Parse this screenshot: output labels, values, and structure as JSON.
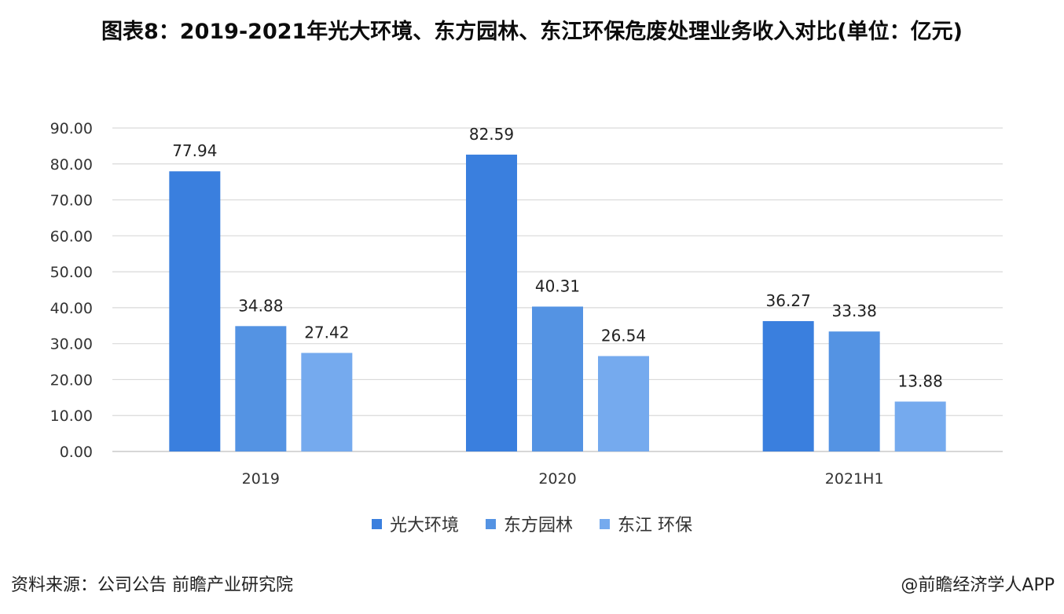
{
  "colors": {
    "series": [
      "#3a7fde",
      "#5493e3",
      "#75aaee"
    ],
    "grid": "#d9d9d9",
    "axis": "#bfbfbf"
  },
  "chart_data": {
    "type": "bar",
    "title": "图表8：2019-2021年光大环境、东方园林、东江环保危废处理业务收入对比(单位：亿元)",
    "categories": [
      "2019",
      "2020",
      "2021H1"
    ],
    "series": [
      {
        "name": "光大环境",
        "values": [
          77.94,
          82.59,
          36.27
        ],
        "labels": [
          "77.94",
          "82.59",
          "36.27"
        ]
      },
      {
        "name": "东方园林",
        "values": [
          34.88,
          40.31,
          33.38
        ],
        "labels": [
          "34.88",
          "40.31",
          "33.38"
        ]
      },
      {
        "name": "东江 环保",
        "values": [
          27.42,
          26.54,
          13.88
        ],
        "labels": [
          "27.42",
          "26.54",
          "13.88"
        ]
      }
    ],
    "ylim": [
      0,
      90
    ],
    "yticks": [
      "0.00",
      "10.00",
      "20.00",
      "30.00",
      "40.00",
      "50.00",
      "60.00",
      "70.00",
      "80.00",
      "90.00"
    ],
    "grid": true,
    "legend": "bottom"
  },
  "footer": {
    "source": "资料来源：公司公告 前瞻产业研究院",
    "credit": "@前瞻经济学人APP"
  }
}
